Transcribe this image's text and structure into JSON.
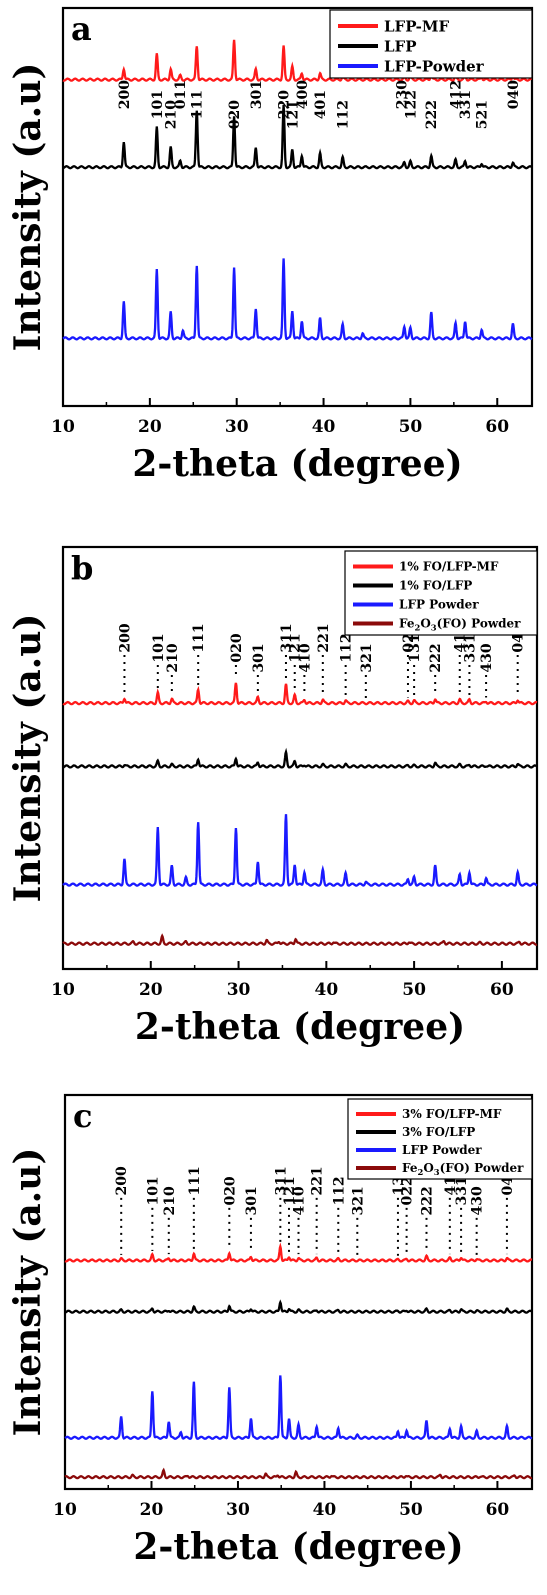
{
  "chart_data": [
    {
      "type": "line",
      "panel_label": "a",
      "xlabel": "2-theta (degree)",
      "ylabel": "Intensity (a.u)",
      "xlim": [
        10,
        64
      ],
      "xticks": [
        "10",
        "20",
        "30",
        "40",
        "50",
        "60"
      ],
      "legend_position": "top-right",
      "series": [
        {
          "name": "LFP-MF",
          "color": "#ff1a1a",
          "baseline": 0.82,
          "scale": 0.2,
          "peaks": [
            [
              17.0,
              0.14
            ],
            [
              20.8,
              0.32
            ],
            [
              22.4,
              0.13
            ],
            [
              23.5,
              0.05
            ],
            [
              25.4,
              0.42
            ],
            [
              29.7,
              0.5
            ],
            [
              32.2,
              0.13
            ],
            [
              35.4,
              0.42
            ],
            [
              36.4,
              0.16
            ],
            [
              37.5,
              0.08
            ],
            [
              39.6,
              0.08
            ],
            [
              42.2,
              0.04
            ],
            [
              49.3,
              0.03
            ],
            [
              50.0,
              0.05
            ],
            [
              52.4,
              0.06
            ],
            [
              55.2,
              0.05
            ],
            [
              56.3,
              0.05
            ],
            [
              58.2,
              0.03
            ],
            [
              61.8,
              0.05
            ]
          ]
        },
        {
          "name": "LFP",
          "color": "#000000",
          "baseline": 0.6,
          "scale": 0.2,
          "peaks": [
            [
              17.0,
              0.32
            ],
            [
              20.8,
              0.5
            ],
            [
              22.4,
              0.25
            ],
            [
              23.5,
              0.08
            ],
            [
              25.4,
              0.72
            ],
            [
              29.7,
              0.65
            ],
            [
              32.2,
              0.25
            ],
            [
              35.4,
              0.77
            ],
            [
              36.4,
              0.22
            ],
            [
              37.5,
              0.15
            ],
            [
              39.6,
              0.17
            ],
            [
              42.2,
              0.12
            ],
            [
              49.3,
              0.06
            ],
            [
              50.0,
              0.07
            ],
            [
              52.4,
              0.14
            ],
            [
              55.2,
              0.09
            ],
            [
              56.3,
              0.08
            ],
            [
              58.2,
              0.05
            ],
            [
              61.8,
              0.06
            ]
          ]
        },
        {
          "name": "LFP-Powder",
          "color": "#1a1aff",
          "baseline": 0.17,
          "scale": 0.2,
          "peaks": [
            [
              17.0,
              0.46
            ],
            [
              20.8,
              0.87
            ],
            [
              22.4,
              0.33
            ],
            [
              23.8,
              0.1
            ],
            [
              25.4,
              0.92
            ],
            [
              29.7,
              0.9
            ],
            [
              32.2,
              0.38
            ],
            [
              35.4,
              1.0
            ],
            [
              36.4,
              0.35
            ],
            [
              37.5,
              0.22
            ],
            [
              39.6,
              0.25
            ],
            [
              42.2,
              0.17
            ],
            [
              44.5,
              0.06
            ],
            [
              49.3,
              0.15
            ],
            [
              50.0,
              0.13
            ],
            [
              52.4,
              0.32
            ],
            [
              55.2,
              0.19
            ],
            [
              56.3,
              0.22
            ],
            [
              58.2,
              0.11
            ],
            [
              61.8,
              0.18
            ]
          ]
        }
      ],
      "annotations": [
        {
          "label": "200",
          "x": 17.0
        },
        {
          "label": "101",
          "x": 20.8
        },
        {
          "label": "210",
          "x": 22.4
        },
        {
          "label": "011",
          "x": 23.5
        },
        {
          "label": "111",
          "x": 25.4
        },
        {
          "label": "020",
          "x": 29.7
        },
        {
          "label": "301",
          "x": 32.2
        },
        {
          "label": "220",
          "x": 35.4
        },
        {
          "label": "121",
          "x": 36.4
        },
        {
          "label": "400",
          "x": 37.5
        },
        {
          "label": "401",
          "x": 39.6
        },
        {
          "label": "112",
          "x": 42.2
        },
        {
          "label": "230",
          "x": 49.0
        },
        {
          "label": "122",
          "x": 50.0
        },
        {
          "label": "222",
          "x": 52.4
        },
        {
          "label": "412",
          "x": 55.2
        },
        {
          "label": "331",
          "x": 56.3
        },
        {
          "label": "521",
          "x": 58.2
        },
        {
          "label": "040",
          "x": 61.8
        }
      ]
    },
    {
      "type": "line",
      "panel_label": "b",
      "xlabel": "2-theta (degree)",
      "ylabel": "Intensity (a.u)",
      "xlim": [
        10,
        64
      ],
      "xticks": [
        "10",
        "20",
        "30",
        "40",
        "50",
        "60"
      ],
      "legend_position": "top-right",
      "series": [
        {
          "name": "1% FO/LFP-MF",
          "color": "#ff1a1a",
          "baseline": 0.63,
          "scale": 0.2,
          "peaks": [
            [
              17.0,
              0.06
            ],
            [
              20.8,
              0.12
            ],
            [
              22.4,
              0.05
            ],
            [
              25.4,
              0.16
            ],
            [
              29.7,
              0.24
            ],
            [
              32.2,
              0.07
            ],
            [
              35.4,
              0.22
            ],
            [
              36.4,
              0.09
            ],
            [
              37.5,
              0.04
            ],
            [
              39.6,
              0.04
            ],
            [
              42.2,
              0.03
            ],
            [
              49.3,
              0.02
            ],
            [
              50.0,
              0.03
            ],
            [
              52.4,
              0.05
            ],
            [
              55.2,
              0.04
            ],
            [
              56.3,
              0.04
            ],
            [
              58.2,
              0.02
            ],
            [
              61.8,
              0.04
            ]
          ]
        },
        {
          "name": "1% FO/LFP",
          "color": "#000000",
          "baseline": 0.48,
          "scale": 0.2,
          "peaks": [
            [
              17.0,
              0.02
            ],
            [
              20.8,
              0.06
            ],
            [
              22.4,
              0.02
            ],
            [
              25.4,
              0.09
            ],
            [
              29.7,
              0.1
            ],
            [
              32.2,
              0.05
            ],
            [
              35.4,
              0.16
            ],
            [
              36.4,
              0.06
            ],
            [
              37.5,
              0.02
            ],
            [
              39.6,
              0.02
            ],
            [
              42.2,
              0.02
            ],
            [
              49.3,
              0.01
            ],
            [
              50.0,
              0.01
            ],
            [
              52.4,
              0.04
            ],
            [
              55.2,
              0.02
            ],
            [
              56.3,
              0.02
            ],
            [
              58.2,
              0.01
            ],
            [
              61.8,
              0.03
            ]
          ]
        },
        {
          "name": "LFP Powder",
          "color": "#1a1aff",
          "baseline": 0.2,
          "scale": 0.2,
          "peaks": [
            [
              17.0,
              0.3
            ],
            [
              20.8,
              0.68
            ],
            [
              22.4,
              0.22
            ],
            [
              24.0,
              0.08
            ],
            [
              25.4,
              0.75
            ],
            [
              29.7,
              0.68
            ],
            [
              32.2,
              0.28
            ],
            [
              35.4,
              0.83
            ],
            [
              36.4,
              0.24
            ],
            [
              37.5,
              0.15
            ],
            [
              39.6,
              0.17
            ],
            [
              42.2,
              0.13
            ],
            [
              44.5,
              0.03
            ],
            [
              49.3,
              0.07
            ],
            [
              50.0,
              0.09
            ],
            [
              52.4,
              0.22
            ],
            [
              55.2,
              0.12
            ],
            [
              56.3,
              0.15
            ],
            [
              58.2,
              0.08
            ],
            [
              61.8,
              0.14
            ]
          ]
        },
        {
          "name": "Fe2O3(FO) Powder",
          "color": "#8b0a0a",
          "baseline": 0.06,
          "scale": 0.2,
          "peaks": [
            [
              18.0,
              0.02
            ],
            [
              21.3,
              0.08
            ],
            [
              24.0,
              0.02
            ],
            [
              33.2,
              0.04
            ],
            [
              34.6,
              0.03
            ],
            [
              36.5,
              0.06
            ],
            [
              40.8,
              0.02
            ],
            [
              49.4,
              0.02
            ],
            [
              53.4,
              0.03
            ],
            [
              57.5,
              0.01
            ],
            [
              62.0,
              0.02
            ]
          ]
        }
      ],
      "annotations": [
        {
          "label": "200",
          "x": 17.0
        },
        {
          "label": "101",
          "x": 20.8
        },
        {
          "label": "210",
          "x": 22.4
        },
        {
          "label": "111",
          "x": 25.4
        },
        {
          "label": "020",
          "x": 29.7
        },
        {
          "label": "301",
          "x": 32.2
        },
        {
          "label": "311",
          "x": 35.4
        },
        {
          "label": "121",
          "x": 36.4
        },
        {
          "label": "410",
          "x": 37.5
        },
        {
          "label": "221",
          "x": 39.6
        },
        {
          "label": "112",
          "x": 42.2
        },
        {
          "label": "321",
          "x": 44.5
        },
        {
          "label": "022",
          "x": 49.3
        },
        {
          "label": "131",
          "x": 50.0
        },
        {
          "label": "222",
          "x": 52.4
        },
        {
          "label": "412",
          "x": 55.2
        },
        {
          "label": "331",
          "x": 56.3
        },
        {
          "label": "430",
          "x": 58.2
        },
        {
          "label": "040",
          "x": 61.8
        }
      ]
    },
    {
      "type": "line",
      "panel_label": "c",
      "xlabel": "2-theta (degree)",
      "ylabel": "Intensity (a.u)",
      "xlim": [
        10,
        64
      ],
      "xticks": [
        "10",
        "20",
        "30",
        "40",
        "50",
        "60"
      ],
      "legend_position": "top-right",
      "series": [
        {
          "name": "3% FO/LFP-MF",
          "color": "#ff1a1a",
          "baseline": 0.58,
          "scale": 0.2,
          "peaks": [
            [
              16.5,
              0.02
            ],
            [
              20.1,
              0.07
            ],
            [
              22.0,
              0.03
            ],
            [
              24.9,
              0.09
            ],
            [
              29.0,
              0.1
            ],
            [
              31.5,
              0.05
            ],
            [
              34.9,
              0.18
            ],
            [
              35.9,
              0.05
            ],
            [
              37.0,
              0.03
            ],
            [
              39.1,
              0.03
            ],
            [
              41.6,
              0.02
            ],
            [
              48.5,
              0.01
            ],
            [
              49.5,
              0.02
            ],
            [
              51.8,
              0.05
            ],
            [
              54.5,
              0.03
            ],
            [
              55.8,
              0.04
            ],
            [
              57.6,
              0.02
            ],
            [
              61.1,
              0.03
            ]
          ]
        },
        {
          "name": "3% FO/LFP",
          "color": "#000000",
          "baseline": 0.45,
          "scale": 0.2,
          "peaks": [
            [
              16.5,
              0.02
            ],
            [
              20.1,
              0.04
            ],
            [
              22.0,
              0.02
            ],
            [
              24.9,
              0.06
            ],
            [
              29.0,
              0.08
            ],
            [
              31.5,
              0.04
            ],
            [
              34.9,
              0.13
            ],
            [
              35.9,
              0.04
            ],
            [
              37.0,
              0.02
            ],
            [
              39.1,
              0.02
            ],
            [
              41.6,
              0.02
            ],
            [
              48.5,
              0.01
            ],
            [
              49.5,
              0.02
            ],
            [
              51.8,
              0.03
            ],
            [
              54.5,
              0.02
            ],
            [
              55.8,
              0.03
            ],
            [
              57.6,
              0.01
            ],
            [
              61.1,
              0.03
            ]
          ]
        },
        {
          "name": "LFP Powder",
          "color": "#1a1aff",
          "baseline": 0.13,
          "scale": 0.2,
          "peaks": [
            [
              16.5,
              0.27
            ],
            [
              20.1,
              0.6
            ],
            [
              22.0,
              0.21
            ],
            [
              23.4,
              0.07
            ],
            [
              24.9,
              0.7
            ],
            [
              29.0,
              0.64
            ],
            [
              31.5,
              0.25
            ],
            [
              34.9,
              0.8
            ],
            [
              35.9,
              0.24
            ],
            [
              37.0,
              0.16
            ],
            [
              39.1,
              0.15
            ],
            [
              41.6,
              0.13
            ],
            [
              43.8,
              0.03
            ],
            [
              48.5,
              0.09
            ],
            [
              49.5,
              0.1
            ],
            [
              51.8,
              0.22
            ],
            [
              54.5,
              0.12
            ],
            [
              55.8,
              0.14
            ],
            [
              57.6,
              0.08
            ],
            [
              61.1,
              0.14
            ]
          ]
        },
        {
          "name": "Fe2O3(FO) Powder",
          "color": "#8b0a0a",
          "baseline": 0.03,
          "scale": 0.2,
          "peaks": [
            [
              17.8,
              0.02
            ],
            [
              21.4,
              0.08
            ],
            [
              24.2,
              0.02
            ],
            [
              33.2,
              0.04
            ],
            [
              34.6,
              0.03
            ],
            [
              36.7,
              0.06
            ],
            [
              40.8,
              0.02
            ],
            [
              49.4,
              0.02
            ],
            [
              53.4,
              0.03
            ],
            [
              58.0,
              0.01
            ],
            [
              62.0,
              0.02
            ]
          ]
        }
      ],
      "annotations": [
        {
          "label": "200",
          "x": 16.5
        },
        {
          "label": "101",
          "x": 20.1
        },
        {
          "label": "210",
          "x": 22.0
        },
        {
          "label": "111",
          "x": 24.9
        },
        {
          "label": "020",
          "x": 29.0
        },
        {
          "label": "301",
          "x": 31.5
        },
        {
          "label": "311",
          "x": 34.9
        },
        {
          "label": "121",
          "x": 35.9
        },
        {
          "label": "410",
          "x": 37.0
        },
        {
          "label": "221",
          "x": 39.1
        },
        {
          "label": "112",
          "x": 41.6
        },
        {
          "label": "321",
          "x": 43.8
        },
        {
          "label": "131",
          "x": 48.5
        },
        {
          "label": "022",
          "x": 49.5
        },
        {
          "label": "222",
          "x": 51.8
        },
        {
          "label": "412",
          "x": 54.5
        },
        {
          "label": "331",
          "x": 55.8
        },
        {
          "label": "430",
          "x": 57.6
        },
        {
          "label": "040",
          "x": 61.1
        }
      ]
    }
  ]
}
